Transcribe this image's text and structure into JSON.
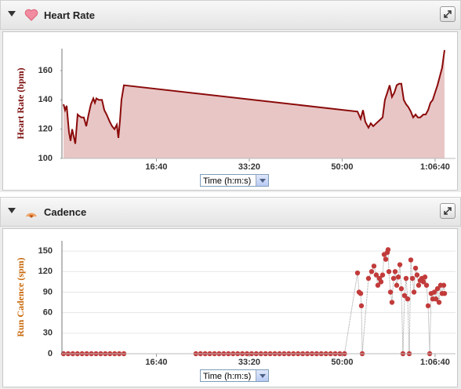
{
  "chart_data": [
    {
      "type": "area",
      "title": "Heart Rate",
      "y_label": "Heart Rate (bpm)",
      "x_selector": "Time (h:m:s)",
      "x": [
        0,
        17,
        34,
        59,
        76,
        93,
        110,
        127,
        152,
        169,
        194,
        219,
        245,
        270,
        295,
        321,
        338,
        354,
        380,
        414,
        439,
        464,
        498,
        523,
        549,
        574,
        591,
        608,
        624,
        650,
        3165,
        3199,
        3224,
        3249,
        3283,
        3308,
        3334,
        3367,
        3401,
        3435,
        3460,
        3486,
        3511,
        3536,
        3562,
        3587,
        3612,
        3637,
        3663,
        3688,
        3713,
        3739,
        3764,
        3790,
        3815,
        3840,
        3874,
        3899,
        3925,
        3950,
        3975,
        4000,
        4026,
        4051,
        4076,
        4093,
        4102
      ],
      "series": [
        {
          "color": "#8b0a0a",
          "fill": "#e8c6c6",
          "values": [
            137,
            133,
            136,
            118,
            112,
            120,
            115,
            110,
            130,
            129,
            128,
            128,
            122,
            130,
            137,
            141,
            138,
            141,
            140,
            140,
            133,
            130,
            125,
            122,
            120,
            123,
            114,
            126,
            140,
            150,
            132,
            127,
            133,
            125,
            121,
            124,
            122,
            124,
            126,
            128,
            140,
            145,
            150,
            142,
            145,
            150,
            151,
            151,
            140,
            137,
            135,
            132,
            128,
            130,
            128,
            128,
            130,
            130,
            133,
            138,
            140,
            145,
            150,
            156,
            162,
            170,
            174
          ]
        }
      ],
      "xlim": [
        0,
        4220
      ],
      "xticks": [
        {
          "value": 1000,
          "label": "16:40"
        },
        {
          "value": 2000,
          "label": "33:20"
        },
        {
          "value": 3000,
          "label": "50:00"
        },
        {
          "value": 4000,
          "label": "1:06:40"
        }
      ],
      "ylim": [
        100,
        175
      ],
      "yticks": [
        100,
        120,
        140,
        160
      ],
      "grid": false,
      "label_color": "#7a0a0a"
    },
    {
      "type": "scatter",
      "title": "Cadence",
      "y_label": "Run Cadence (spm)",
      "x_selector": "Time (h:m:s)",
      "x": [
        0,
        50,
        100,
        150,
        200,
        250,
        300,
        350,
        400,
        450,
        500,
        550,
        600,
        650,
        1425,
        1475,
        1525,
        1575,
        1625,
        1675,
        1725,
        1775,
        1825,
        1875,
        1925,
        1975,
        2025,
        2075,
        2125,
        2175,
        2225,
        2275,
        2325,
        2375,
        2425,
        2475,
        2525,
        2575,
        2625,
        2675,
        2725,
        2775,
        2825,
        2875,
        2925,
        2975,
        3025,
        3165,
        3182,
        3199,
        3207,
        3216,
        3283,
        3317,
        3342,
        3367,
        3384,
        3401,
        3418,
        3435,
        3452,
        3469,
        3486,
        3494,
        3503,
        3520,
        3536,
        3553,
        3570,
        3587,
        3604,
        3621,
        3637,
        3654,
        3671,
        3688,
        3705,
        3722,
        3739,
        3756,
        3773,
        3790,
        3806,
        3823,
        3840,
        3857,
        3874,
        3891,
        3908,
        3925,
        3942,
        3958,
        3975,
        3992,
        4009,
        4026,
        4043,
        4059,
        4076,
        4093,
        4102
      ],
      "series": [
        {
          "color": "#c23b3b",
          "values": [
            0,
            0,
            0,
            0,
            0,
            0,
            0,
            0,
            0,
            0,
            0,
            0,
            0,
            0,
            0,
            0,
            0,
            0,
            0,
            0,
            0,
            0,
            0,
            0,
            0,
            0,
            0,
            0,
            0,
            0,
            0,
            0,
            0,
            0,
            0,
            0,
            0,
            0,
            0,
            0,
            0,
            0,
            0,
            0,
            0,
            0,
            0,
            118,
            90,
            88,
            70,
            0,
            110,
            120,
            128,
            115,
            100,
            110,
            105,
            115,
            145,
            138,
            148,
            152,
            120,
            90,
            75,
            110,
            120,
            100,
            112,
            130,
            95,
            0,
            85,
            110,
            80,
            0,
            137,
            110,
            90,
            125,
            115,
            100,
            107,
            110,
            105,
            112,
            100,
            70,
            0,
            88,
            80,
            90,
            80,
            95,
            75,
            100,
            88,
            100,
            88
          ]
        }
      ],
      "xlim": [
        0,
        4220
      ],
      "xticks": [
        {
          "value": 1000,
          "label": "16:40"
        },
        {
          "value": 2000,
          "label": "33:20"
        },
        {
          "value": 3000,
          "label": "50:00"
        },
        {
          "value": 4000,
          "label": "1:06:40"
        }
      ],
      "ylim": [
        0,
        165
      ],
      "yticks": [
        0,
        30,
        60,
        90,
        120,
        150
      ],
      "grid": true,
      "label_color": "#c8680a"
    }
  ]
}
